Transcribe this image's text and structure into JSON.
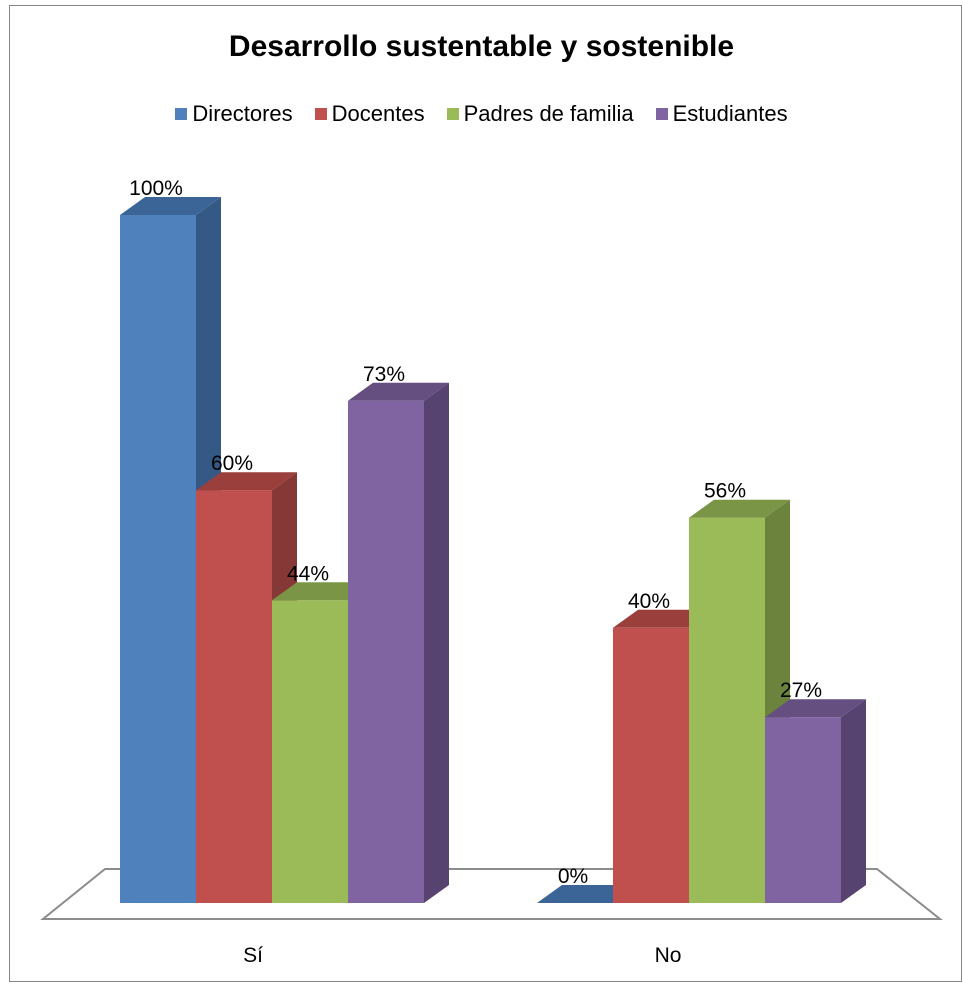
{
  "chart_data": {
    "type": "bar",
    "title": "Desarrollo sustentable y sostenible",
    "categories": [
      "Sí",
      "No"
    ],
    "series": [
      {
        "name": "Directores",
        "values": [
          100,
          0
        ],
        "labels": [
          "100%",
          "0%"
        ],
        "color": "#4F81BD",
        "side_color": "#355985",
        "top_color": "#3B6597"
      },
      {
        "name": "Docentes",
        "values": [
          60,
          40
        ],
        "labels": [
          "60%",
          "40%"
        ],
        "color": "#C0504D",
        "side_color": "#863836",
        "top_color": "#9A3F3C"
      },
      {
        "name": "Padres de familia",
        "values": [
          44,
          56
        ],
        "labels": [
          "44%",
          "56%"
        ],
        "color": "#9BBB59",
        "side_color": "#6B833C",
        "top_color": "#7A9545"
      },
      {
        "name": "Estudiantes",
        "values": [
          73,
          27
        ],
        "labels": [
          "73%",
          "27%"
        ],
        "color": "#8064A2",
        "side_color": "#574370",
        "top_color": "#654F80"
      }
    ],
    "ylim": [
      0,
      100
    ],
    "gridlines": false,
    "legend_position": "top",
    "style": "3d-clustered-column"
  }
}
